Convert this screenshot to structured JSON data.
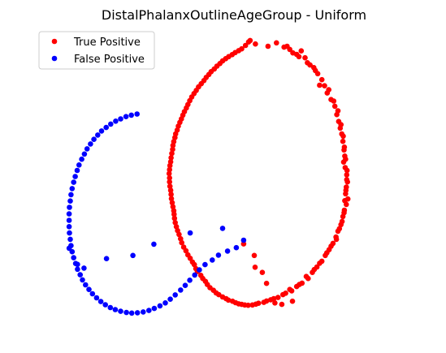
{
  "chart_data": {
    "type": "scatter",
    "title": "DistalPhalanxOutlineAgeGroup - Uniform",
    "xlabel": "",
    "ylabel": "",
    "xlim": [
      0,
      100
    ],
    "ylim": [
      0,
      100
    ],
    "axes_visible": false,
    "grid": false,
    "legend_position": "top-left",
    "series": [
      {
        "name": "True Positive",
        "color": "#ff0000",
        "points": [
          [
            53.4,
            96.7
          ],
          [
            53.8,
            97.2
          ],
          [
            58.5,
            95.2
          ],
          [
            62.7,
            94.9
          ],
          [
            63.5,
            95.2
          ],
          [
            65.0,
            92.9
          ],
          [
            66.0,
            92.4
          ],
          [
            67.2,
            93.6
          ],
          [
            68.2,
            91.2
          ],
          [
            69.5,
            88.7
          ],
          [
            70.5,
            87.8
          ],
          [
            71.5,
            85.7
          ],
          [
            72.0,
            81.7
          ],
          [
            73.3,
            81.5
          ],
          [
            74.0,
            79.0
          ],
          [
            75.0,
            76.7
          ],
          [
            76.0,
            74.4
          ],
          [
            76.5,
            71.5
          ],
          [
            77.0,
            69.1
          ],
          [
            77.4,
            66.8
          ],
          [
            77.8,
            64.8
          ],
          [
            78.1,
            62.2
          ],
          [
            78.4,
            59.2
          ],
          [
            78.6,
            57.1
          ],
          [
            78.3,
            55.0
          ],
          [
            78.7,
            53.1
          ],
          [
            79.1,
            50.6
          ],
          [
            79.3,
            48.1
          ],
          [
            79.0,
            46.3
          ],
          [
            78.8,
            44.0
          ],
          [
            79.4,
            42.2
          ],
          [
            79.0,
            40.3
          ],
          [
            78.5,
            38.3
          ],
          [
            78.1,
            36.1
          ],
          [
            77.6,
            33.3
          ],
          [
            76.8,
            31.0
          ],
          [
            76.3,
            29.0
          ],
          [
            75.5,
            26.8
          ],
          [
            74.5,
            24.6
          ],
          [
            73.5,
            22.6
          ],
          [
            72.6,
            20.6
          ],
          [
            71.3,
            18.6
          ],
          [
            70.1,
            16.7
          ],
          [
            69.0,
            14.6
          ],
          [
            67.4,
            13.0
          ],
          [
            66.0,
            11.8
          ],
          [
            64.7,
            10.3
          ],
          [
            63.1,
            9.5
          ],
          [
            61.1,
            8.0
          ],
          [
            59.2,
            7.2
          ],
          [
            57.4,
            6.3
          ],
          [
            55.3,
            5.7
          ],
          [
            53.3,
            5.3
          ],
          [
            51.6,
            5.6
          ],
          [
            50.0,
            6.2
          ],
          [
            48.1,
            7.1
          ],
          [
            46.6,
            8.2
          ],
          [
            44.9,
            9.6
          ],
          [
            43.3,
            11.4
          ],
          [
            42.1,
            13.6
          ],
          [
            40.9,
            15.7
          ],
          [
            39.6,
            18.0
          ],
          [
            38.7,
            20.3
          ],
          [
            37.5,
            22.8
          ],
          [
            36.4,
            25.5
          ],
          [
            35.6,
            28.4
          ],
          [
            34.8,
            31.2
          ],
          [
            34.2,
            34.0
          ],
          [
            33.9,
            36.9
          ],
          [
            33.6,
            39.5
          ],
          [
            33.2,
            42.3
          ],
          [
            33.0,
            45.2
          ],
          [
            32.7,
            48.1
          ],
          [
            32.6,
            51.0
          ],
          [
            32.8,
            53.8
          ],
          [
            33.1,
            56.5
          ],
          [
            33.5,
            59.4
          ],
          [
            33.8,
            62.1
          ],
          [
            34.3,
            64.8
          ],
          [
            35.0,
            67.5
          ],
          [
            35.8,
            70.0
          ],
          [
            36.6,
            72.5
          ],
          [
            37.5,
            75.0
          ],
          [
            38.5,
            77.6
          ],
          [
            39.7,
            79.9
          ],
          [
            41.0,
            82.2
          ],
          [
            42.3,
            84.4
          ],
          [
            43.6,
            86.4
          ],
          [
            45.1,
            88.3
          ],
          [
            46.6,
            90.1
          ],
          [
            48.2,
            91.6
          ],
          [
            49.9,
            93.0
          ],
          [
            51.6,
            94.3
          ],
          [
            52.6,
            95.5
          ],
          [
            55.2,
            96.0
          ],
          [
            60.7,
            96.4
          ],
          [
            64.2,
            94.1
          ],
          [
            66.6,
            91.6
          ],
          [
            68.8,
            89.5
          ],
          [
            70.9,
            86.8
          ],
          [
            72.6,
            83.6
          ],
          [
            74.4,
            80.1
          ],
          [
            75.7,
            76.2
          ],
          [
            76.8,
            72.8
          ],
          [
            77.6,
            68.0
          ],
          [
            78.2,
            64.0
          ],
          [
            78.5,
            60.2
          ],
          [
            78.8,
            56.0
          ],
          [
            79.2,
            52.1
          ],
          [
            79.1,
            48.9
          ],
          [
            78.9,
            45.2
          ],
          [
            78.6,
            41.6
          ],
          [
            78.4,
            37.4
          ],
          [
            77.9,
            34.4
          ],
          [
            77.2,
            31.9
          ],
          [
            76.4,
            28.2
          ],
          [
            75.0,
            25.8
          ],
          [
            73.9,
            23.5
          ],
          [
            72.0,
            19.9
          ],
          [
            70.6,
            17.7
          ],
          [
            68.5,
            15.3
          ],
          [
            66.7,
            12.5
          ],
          [
            64.2,
            10.8
          ],
          [
            62.4,
            9.0
          ],
          [
            60.0,
            7.6
          ],
          [
            58.1,
            6.8
          ],
          [
            56.0,
            6.0
          ],
          [
            54.4,
            5.4
          ],
          [
            52.4,
            5.4
          ],
          [
            50.8,
            5.8
          ],
          [
            49.2,
            6.7
          ],
          [
            47.5,
            7.6
          ],
          [
            45.6,
            9.0
          ],
          [
            44.2,
            10.5
          ],
          [
            42.6,
            12.5
          ],
          [
            41.4,
            14.6
          ],
          [
            40.0,
            17.0
          ],
          [
            39.2,
            19.4
          ],
          [
            38.1,
            21.6
          ],
          [
            37.0,
            24.2
          ],
          [
            35.9,
            27.0
          ],
          [
            35.2,
            29.9
          ],
          [
            34.5,
            32.6
          ],
          [
            34.0,
            35.5
          ],
          [
            33.8,
            38.1
          ],
          [
            33.4,
            40.9
          ],
          [
            33.1,
            43.8
          ],
          [
            32.8,
            46.6
          ],
          [
            32.7,
            49.5
          ],
          [
            32.7,
            52.4
          ],
          [
            33.0,
            55.1
          ],
          [
            33.3,
            58.0
          ],
          [
            33.6,
            60.8
          ],
          [
            34.1,
            63.5
          ],
          [
            34.7,
            66.1
          ],
          [
            35.4,
            68.8
          ],
          [
            36.2,
            71.3
          ],
          [
            37.1,
            73.8
          ],
          [
            38.0,
            76.3
          ],
          [
            39.1,
            78.8
          ],
          [
            40.3,
            81.1
          ],
          [
            41.7,
            83.3
          ],
          [
            43.0,
            85.4
          ],
          [
            44.4,
            87.3
          ],
          [
            45.9,
            89.2
          ],
          [
            47.4,
            90.9
          ],
          [
            49.1,
            92.3
          ],
          [
            50.8,
            93.7
          ],
          [
            62.1,
            5.6
          ],
          [
            60.3,
            6.1
          ],
          [
            64.9,
            6.7
          ],
          [
            58.1,
            12.9
          ],
          [
            57.0,
            16.7
          ],
          [
            55.1,
            18.5
          ],
          [
            54.9,
            22.6
          ],
          [
            52.1,
            26.6
          ],
          [
            46.6,
            32.0
          ],
          [
            38.1,
            30.4
          ],
          [
            28.6,
            26.5
          ],
          [
            23.1,
            22.6
          ],
          [
            16.2,
            21.5
          ],
          [
            10.3,
            18.2
          ],
          [
            8.6,
            19.5
          ],
          [
            6.4,
            25.1
          ],
          [
            52.1,
            27.9
          ],
          [
            50.2,
            25.3
          ],
          [
            47.9,
            24.1
          ],
          [
            45.5,
            22.7
          ],
          [
            43.9,
            21.0
          ],
          [
            42.0,
            19.4
          ],
          [
            40.5,
            17.6
          ],
          [
            39.3,
            15.8
          ],
          [
            38.0,
            14.0
          ],
          [
            36.8,
            12.2
          ],
          [
            35.6,
            10.6
          ],
          [
            34.2,
            8.9
          ],
          [
            32.9,
            7.4
          ],
          [
            31.6,
            6.1
          ],
          [
            30.2,
            5.1
          ],
          [
            28.7,
            4.2
          ],
          [
            27.3,
            3.5
          ],
          [
            25.8,
            3.0
          ],
          [
            24.3,
            2.7
          ],
          [
            22.8,
            2.6
          ],
          [
            21.4,
            2.8
          ],
          [
            19.9,
            3.2
          ],
          [
            18.5,
            3.8
          ],
          [
            17.2,
            4.5
          ],
          [
            15.9,
            5.5
          ],
          [
            14.7,
            6.6
          ],
          [
            13.6,
            7.9
          ],
          [
            12.5,
            9.3
          ],
          [
            11.6,
            10.8
          ],
          [
            10.7,
            12.4
          ],
          [
            9.9,
            14.1
          ],
          [
            9.3,
            15.9
          ],
          [
            8.6,
            17.8
          ],
          [
            8.1,
            19.8
          ],
          [
            7.6,
            21.8
          ],
          [
            7.2,
            23.9
          ],
          [
            6.9,
            26.0
          ],
          [
            6.7,
            28.2
          ],
          [
            6.5,
            30.4
          ],
          [
            6.4,
            32.6
          ],
          [
            6.4,
            34.8
          ],
          [
            6.4,
            37.0
          ],
          [
            6.5,
            39.3
          ],
          [
            6.7,
            41.5
          ],
          [
            6.9,
            43.7
          ],
          [
            7.2,
            45.8
          ],
          [
            7.6,
            48.0
          ],
          [
            8.0,
            50.0
          ],
          [
            8.5,
            52.1
          ],
          [
            9.0,
            54.0
          ],
          [
            9.7,
            56.0
          ],
          [
            10.4,
            57.8
          ],
          [
            11.1,
            59.6
          ],
          [
            12.0,
            61.3
          ],
          [
            12.9,
            62.9
          ],
          [
            13.9,
            64.4
          ],
          [
            14.9,
            65.8
          ],
          [
            16.1,
            67.0
          ],
          [
            17.3,
            68.2
          ],
          [
            18.6,
            69.2
          ],
          [
            19.9,
            70.0
          ],
          [
            21.3,
            70.8
          ],
          [
            22.7,
            71.3
          ],
          [
            24.2,
            71.7
          ]
        ]
      },
      {
        "name": "False Positive",
        "color": "#0000ff",
        "points": []
      }
    ]
  }
}
